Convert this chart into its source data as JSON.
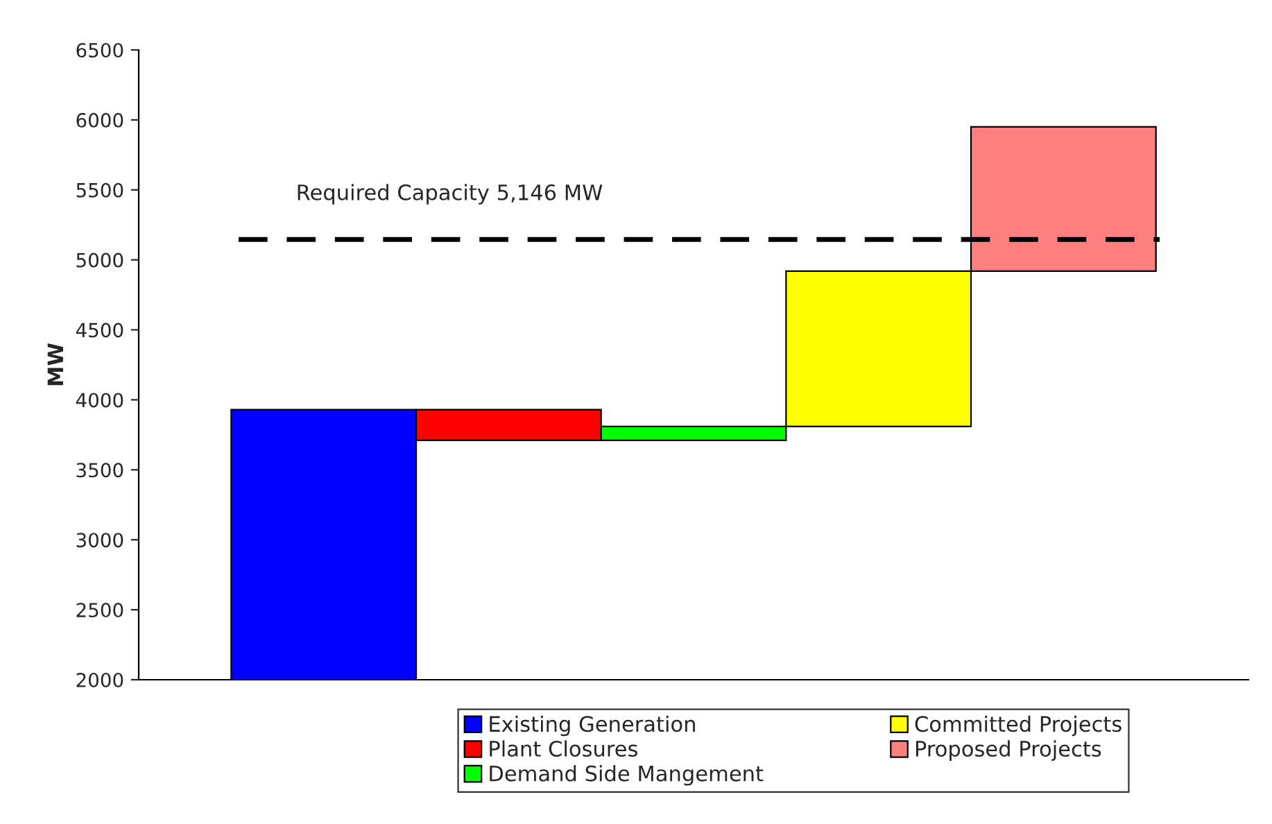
{
  "chart_data": {
    "type": "bar",
    "ylabel": "MW",
    "categories": [
      null,
      null,
      null,
      null,
      null
    ],
    "series": [
      {
        "name": "Existing Generation",
        "color": "#0000ff",
        "base": [
          2000,
          null,
          null,
          null,
          null
        ],
        "values": [
          1930,
          null,
          null,
          null,
          null
        ]
      },
      {
        "name": "Plant Closures",
        "color": "#ff0000",
        "base": [
          null,
          3930,
          null,
          null,
          null
        ],
        "values": [
          null,
          -220,
          null,
          null,
          null
        ]
      },
      {
        "name": "Demand Side Mangement",
        "color": "#00ff00",
        "base": [
          null,
          null,
          3710,
          null,
          null
        ],
        "values": [
          null,
          null,
          100,
          null,
          null
        ]
      },
      {
        "name": "Committed Projects",
        "color": "#ffff00",
        "base": [
          null,
          null,
          null,
          3810,
          null
        ],
        "values": [
          null,
          null,
          null,
          1110,
          null
        ]
      },
      {
        "name": "Proposed Projects",
        "color": "#ff8080",
        "base": [
          null,
          null,
          null,
          null,
          4920
        ],
        "values": [
          null,
          null,
          null,
          null,
          1030
        ]
      }
    ],
    "ylim": [
      2000,
      6500
    ],
    "yticks": [
      2000,
      2500,
      3000,
      3500,
      4000,
      4500,
      5000,
      5500,
      6000,
      6500
    ],
    "ref_lines": [
      {
        "axis": "y",
        "value": 5146,
        "label": "Required Capacity 5,146 MW",
        "color": "#000000",
        "line_style": "dashed"
      }
    ],
    "grid": false,
    "legend": "bottom",
    "tick_labels": "y"
  }
}
